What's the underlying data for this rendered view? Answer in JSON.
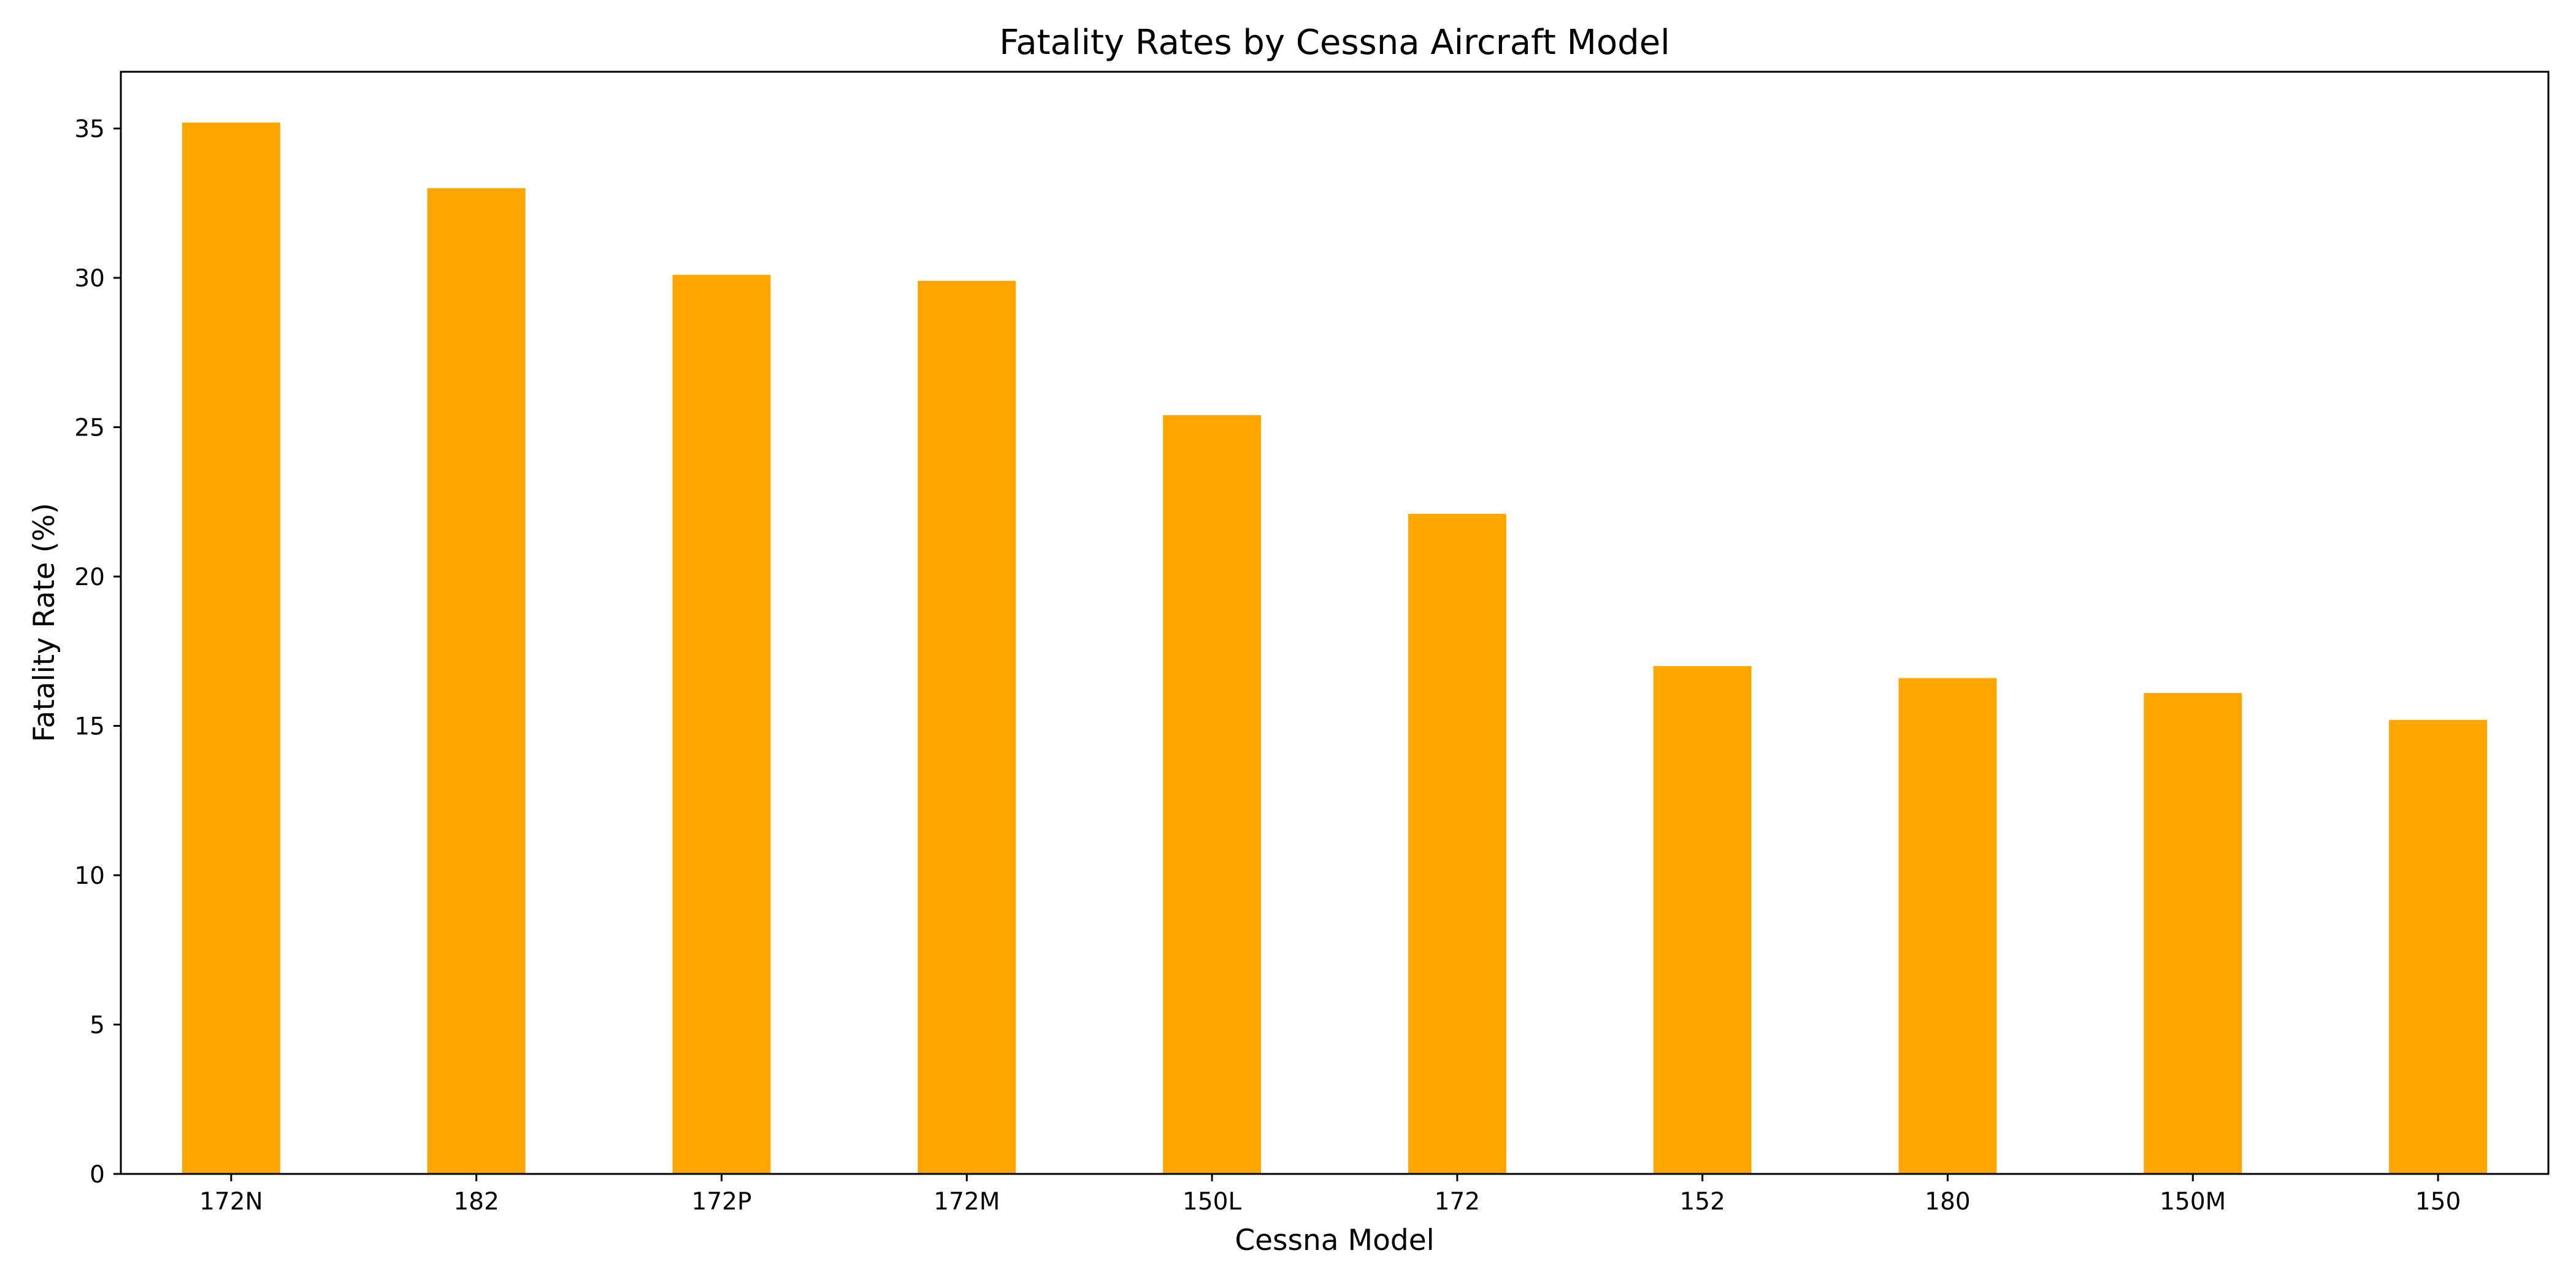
{
  "chart_data": {
    "type": "bar",
    "title": "Fatality Rates by Cessna Aircraft Model",
    "xlabel": "Cessna Model",
    "ylabel": "Fatality Rate (%)",
    "categories": [
      "172N",
      "182",
      "172P",
      "172M",
      "150L",
      "172",
      "152",
      "180",
      "150M",
      "150"
    ],
    "values": [
      35.2,
      33.0,
      30.1,
      29.9,
      25.4,
      22.1,
      17.0,
      16.6,
      16.1,
      15.2
    ],
    "ylim": [
      0,
      36.9
    ],
    "yticks": [
      0,
      5,
      10,
      15,
      20,
      25,
      30,
      35
    ],
    "bar_color": "#FFA500",
    "grid": false,
    "legend": "none"
  }
}
